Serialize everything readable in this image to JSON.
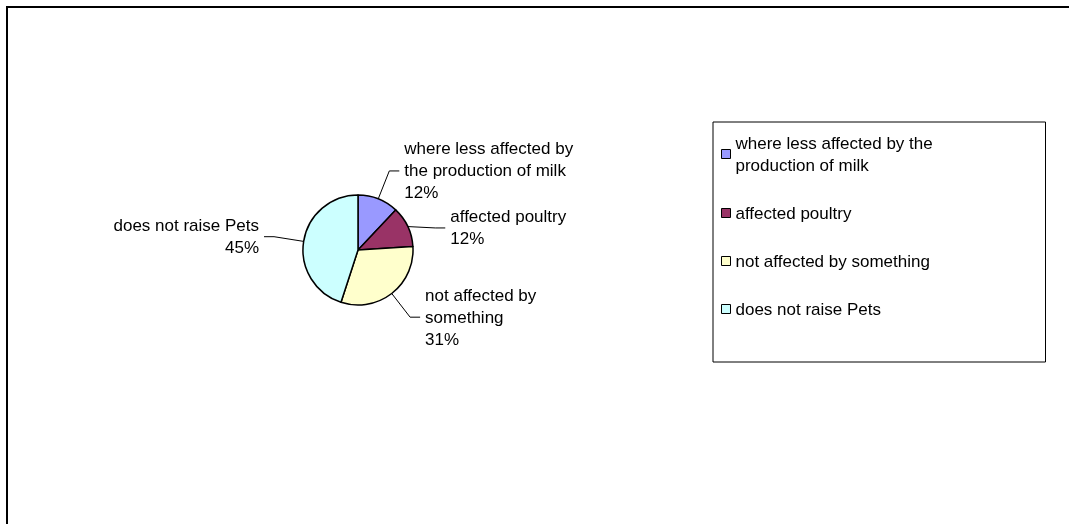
{
  "chart_data": {
    "type": "pie",
    "categories": [
      "where less affected by the production of milk",
      "affected poultry",
      "not affected by something",
      "does not raise Pets"
    ],
    "values": [
      12,
      12,
      31,
      45
    ],
    "value_labels": [
      "12%",
      "12%",
      "31%",
      "45%"
    ],
    "colors": [
      "#9999ff",
      "#993366",
      "#ffffcc",
      "#ccffff"
    ],
    "legend": "right"
  }
}
